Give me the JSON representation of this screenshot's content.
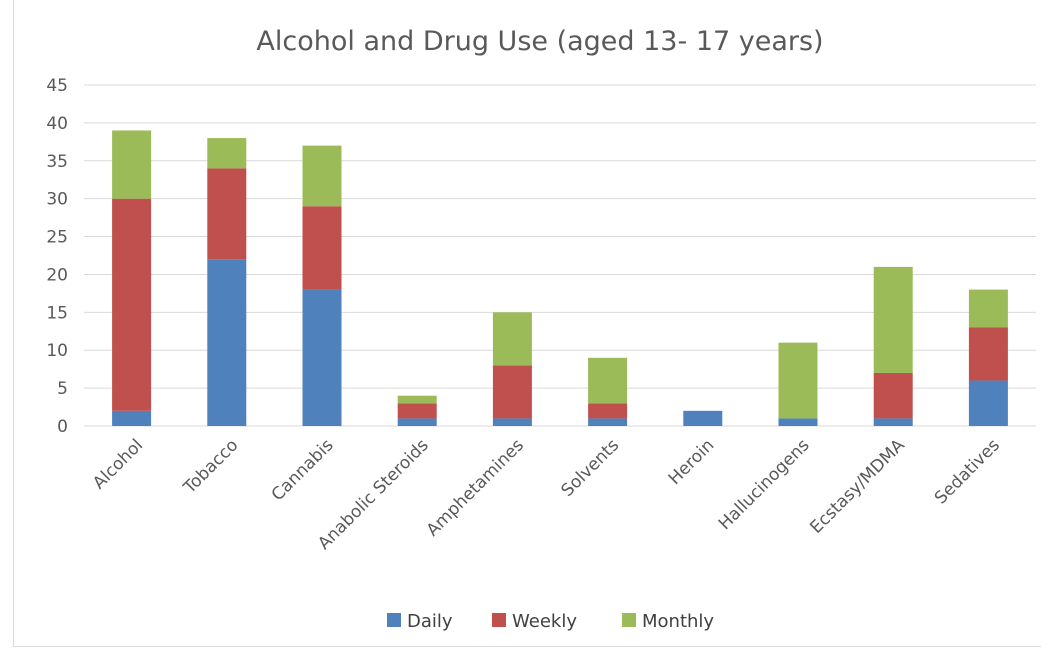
{
  "chart_data": {
    "type": "bar",
    "stacked": true,
    "title": "Alcohol and Drug Use (aged 13- 17 years)",
    "xlabel": "",
    "ylabel": "",
    "ylim": [
      0,
      45
    ],
    "y_ticks": [
      "0",
      "5",
      "10",
      "15",
      "20",
      "25",
      "30",
      "35",
      "40",
      "45"
    ],
    "grid": true,
    "legend_position": "bottom",
    "categories": [
      "Alcohol",
      "Tobacco",
      "Cannabis",
      "Anabolic Steroids",
      "Amphetamines",
      "Solvents",
      "Heroin",
      "Hallucinogens",
      "Ecstasy/MDMA",
      "Sedatives"
    ],
    "series": [
      {
        "name": "Daily",
        "color": "#4f81bd",
        "values": [
          2,
          22,
          18,
          1,
          1,
          1,
          2,
          1,
          1,
          6
        ]
      },
      {
        "name": "Weekly",
        "color": "#c0504d",
        "values": [
          28,
          12,
          11,
          2,
          7,
          2,
          0,
          0,
          6,
          7
        ]
      },
      {
        "name": "Monthly",
        "color": "#9bbb59",
        "values": [
          9,
          4,
          8,
          1,
          7,
          6,
          0,
          10,
          14,
          5
        ]
      }
    ]
  }
}
